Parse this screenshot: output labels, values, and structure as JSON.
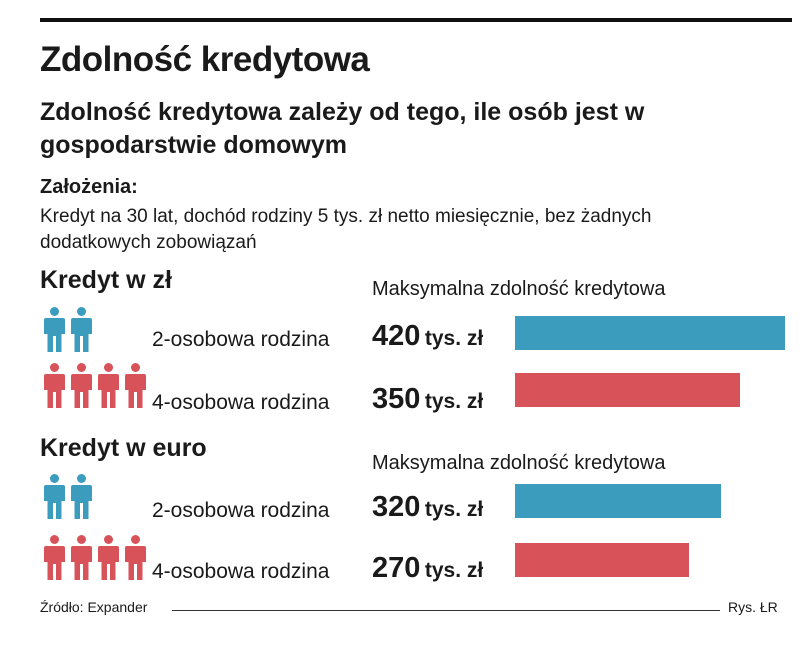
{
  "header": {
    "title": "Zdolność kredytowa",
    "subtitle": "Zdolność kredytowa zależy od tego, ile osób jest w gospodarstwie domowym",
    "assumptions_label": "Założenia:",
    "assumptions_text": "Kredyt na 30 lat, dochód rodziny 5 tys. zł netto miesięcznie, bez żadnych dodatkowych zobowiązań"
  },
  "colors": {
    "two_person": "#3c9cbd",
    "four_person": "#d8525a"
  },
  "icons": {
    "person": "person-icon"
  },
  "footer": {
    "source": "Źródło: Expander",
    "credit": "Rys. ŁR"
  },
  "chart_data": [
    {
      "type": "bar",
      "orientation": "horizontal",
      "title": "Kredyt w zł",
      "value_header": "Maksymalna zdolność kredytowa",
      "categories": [
        "2-osobowa rodzina",
        "4-osobowa rodzina"
      ],
      "values": [
        420,
        350
      ],
      "value_labels": [
        "420",
        "350"
      ],
      "unit": "tys. zł",
      "people_counts": [
        2,
        4
      ]
    },
    {
      "type": "bar",
      "orientation": "horizontal",
      "title": "Kredyt w euro",
      "value_header": "Maksymalna zdolność kredytowa",
      "categories": [
        "2-osobowa rodzina",
        "4-osobowa rodzina"
      ],
      "values": [
        320,
        270
      ],
      "value_labels": [
        "320",
        "270"
      ],
      "unit": "tys. zł",
      "people_counts": [
        2,
        4
      ]
    }
  ]
}
